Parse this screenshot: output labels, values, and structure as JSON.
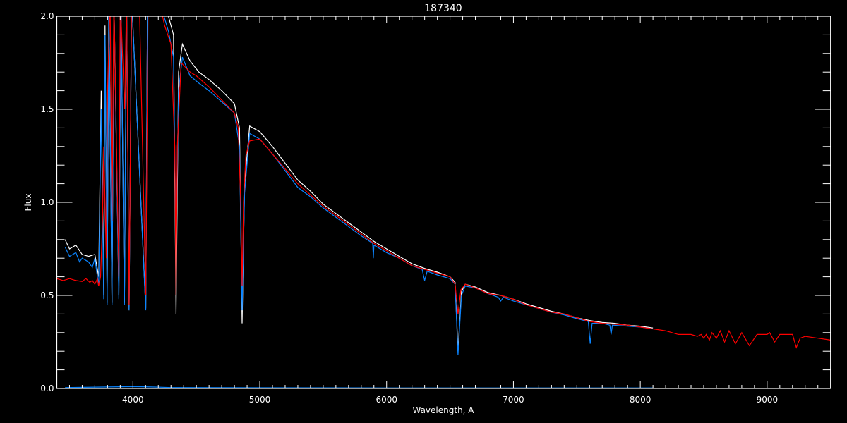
{
  "chart_data": {
    "type": "line",
    "title": "187340",
    "xlabel": "Wavelength, A",
    "ylabel": "Flux",
    "xlim": [
      3400,
      9500
    ],
    "ylim": [
      0,
      2.0
    ],
    "xticks": [
      4000,
      5000,
      6000,
      7000,
      8000,
      9000
    ],
    "xtick_labels": [
      "4000",
      "5000",
      "6000",
      "7000",
      "8000",
      "9000"
    ],
    "yticks": [
      0,
      0.5,
      1.0,
      1.5,
      2.0
    ],
    "ytick_labels": [
      "0.0",
      "0.5",
      "1.0",
      "1.5",
      "2.0"
    ],
    "grid": false,
    "background": "#000000",
    "series": [
      {
        "color": "#ffffff",
        "points": [
          [
            3465,
            0.8
          ],
          [
            3500,
            0.75
          ],
          [
            3550,
            0.77
          ],
          [
            3600,
            0.72
          ],
          [
            3650,
            0.71
          ],
          [
            3700,
            0.72
          ],
          [
            3730,
            0.6
          ],
          [
            3750,
            1.6
          ],
          [
            3770,
            0.5
          ],
          [
            3780,
            1.95
          ],
          [
            3797,
            0.46
          ],
          [
            3810,
            2.1
          ],
          [
            3835,
            0.46
          ],
          [
            3850,
            2.1
          ],
          [
            3889,
            0.5
          ],
          [
            3905,
            2.1
          ],
          [
            3933,
            0.46
          ],
          [
            3950,
            2.1
          ],
          [
            3970,
            0.42
          ],
          [
            3990,
            2.1
          ],
          [
            4101,
            0.43
          ],
          [
            4115,
            2.1
          ],
          [
            4200,
            2.1
          ],
          [
            4280,
            2.0
          ],
          [
            4320,
            1.9
          ],
          [
            4340,
            0.4
          ],
          [
            4360,
            1.7
          ],
          [
            4390,
            1.85
          ],
          [
            4450,
            1.76
          ],
          [
            4520,
            1.7
          ],
          [
            4600,
            1.66
          ],
          [
            4700,
            1.6
          ],
          [
            4800,
            1.53
          ],
          [
            4840,
            1.4
          ],
          [
            4861,
            0.35
          ],
          [
            4880,
            1.1
          ],
          [
            4920,
            1.41
          ],
          [
            5000,
            1.38
          ],
          [
            5100,
            1.3
          ],
          [
            5200,
            1.21
          ],
          [
            5300,
            1.12
          ],
          [
            5400,
            1.06
          ],
          [
            5500,
            0.99
          ],
          [
            5600,
            0.94
          ],
          [
            5700,
            0.89
          ],
          [
            5800,
            0.84
          ],
          [
            5900,
            0.79
          ],
          [
            6000,
            0.75
          ],
          [
            6100,
            0.71
          ],
          [
            6200,
            0.67
          ],
          [
            6300,
            0.645
          ],
          [
            6400,
            0.625
          ],
          [
            6500,
            0.6
          ],
          [
            6540,
            0.57
          ],
          [
            6563,
            0.2
          ],
          [
            6590,
            0.52
          ],
          [
            6620,
            0.56
          ],
          [
            6700,
            0.545
          ],
          [
            6800,
            0.515
          ],
          [
            6900,
            0.5
          ],
          [
            7000,
            0.48
          ],
          [
            7100,
            0.455
          ],
          [
            7200,
            0.435
          ],
          [
            7300,
            0.415
          ],
          [
            7400,
            0.4
          ],
          [
            7500,
            0.38
          ],
          [
            7600,
            0.365
          ],
          [
            7700,
            0.355
          ],
          [
            7800,
            0.35
          ],
          [
            7900,
            0.34
          ],
          [
            8000,
            0.335
          ],
          [
            8100,
            0.325
          ]
        ]
      },
      {
        "color": "#0a84ff",
        "points": [
          [
            3465,
            0.76
          ],
          [
            3500,
            0.71
          ],
          [
            3550,
            0.73
          ],
          [
            3580,
            0.68
          ],
          [
            3600,
            0.7
          ],
          [
            3650,
            0.68
          ],
          [
            3680,
            0.65
          ],
          [
            3700,
            0.7
          ],
          [
            3730,
            0.55
          ],
          [
            3750,
            1.5
          ],
          [
            3770,
            0.48
          ],
          [
            3780,
            1.9
          ],
          [
            3797,
            0.45
          ],
          [
            3810,
            2.1
          ],
          [
            3835,
            0.45
          ],
          [
            3850,
            2.1
          ],
          [
            3889,
            0.48
          ],
          [
            3905,
            2.1
          ],
          [
            3933,
            0.45
          ],
          [
            3950,
            2.1
          ],
          [
            3970,
            0.42
          ],
          [
            3990,
            2.1
          ],
          [
            4101,
            0.42
          ],
          [
            4115,
            2.1
          ],
          [
            4200,
            2.1
          ],
          [
            4280,
            1.92
          ],
          [
            4320,
            1.78
          ],
          [
            4340,
            0.74
          ],
          [
            4360,
            1.6
          ],
          [
            4390,
            1.78
          ],
          [
            4450,
            1.68
          ],
          [
            4520,
            1.64
          ],
          [
            4600,
            1.6
          ],
          [
            4700,
            1.54
          ],
          [
            4800,
            1.48
          ],
          [
            4840,
            1.3
          ],
          [
            4861,
            0.42
          ],
          [
            4880,
            1.05
          ],
          [
            4920,
            1.37
          ],
          [
            5000,
            1.34
          ],
          [
            5100,
            1.26
          ],
          [
            5200,
            1.17
          ],
          [
            5300,
            1.08
          ],
          [
            5400,
            1.03
          ],
          [
            5500,
            0.97
          ],
          [
            5600,
            0.92
          ],
          [
            5700,
            0.87
          ],
          [
            5800,
            0.82
          ],
          [
            5890,
            0.78
          ],
          [
            5895,
            0.7
          ],
          [
            5900,
            0.77
          ],
          [
            6000,
            0.73
          ],
          [
            6100,
            0.7
          ],
          [
            6200,
            0.66
          ],
          [
            6280,
            0.64
          ],
          [
            6300,
            0.58
          ],
          [
            6320,
            0.63
          ],
          [
            6400,
            0.61
          ],
          [
            6500,
            0.59
          ],
          [
            6540,
            0.56
          ],
          [
            6563,
            0.18
          ],
          [
            6590,
            0.5
          ],
          [
            6620,
            0.55
          ],
          [
            6700,
            0.54
          ],
          [
            6800,
            0.51
          ],
          [
            6880,
            0.49
          ],
          [
            6900,
            0.47
          ],
          [
            6920,
            0.49
          ],
          [
            7000,
            0.47
          ],
          [
            7100,
            0.45
          ],
          [
            7200,
            0.43
          ],
          [
            7300,
            0.41
          ],
          [
            7400,
            0.395
          ],
          [
            7500,
            0.375
          ],
          [
            7590,
            0.36
          ],
          [
            7605,
            0.24
          ],
          [
            7620,
            0.35
          ],
          [
            7700,
            0.35
          ],
          [
            7760,
            0.34
          ],
          [
            7770,
            0.29
          ],
          [
            7780,
            0.34
          ],
          [
            7900,
            0.335
          ],
          [
            8000,
            0.33
          ],
          [
            8100,
            0.32
          ]
        ]
      },
      {
        "color": "#0a84ff",
        "points": [
          [
            3465,
            0.005
          ],
          [
            3800,
            0.008
          ],
          [
            4000,
            0.01
          ],
          [
            4150,
            0.008
          ],
          [
            4300,
            0.005
          ],
          [
            6000,
            0.003
          ],
          [
            8100,
            0.003
          ]
        ]
      },
      {
        "color": "#ff0000",
        "points": [
          [
            3400,
            0.59
          ],
          [
            3450,
            0.58
          ],
          [
            3500,
            0.59
          ],
          [
            3550,
            0.58
          ],
          [
            3600,
            0.575
          ],
          [
            3630,
            0.59
          ],
          [
            3660,
            0.57
          ],
          [
            3680,
            0.58
          ],
          [
            3700,
            0.56
          ],
          [
            3720,
            0.59
          ],
          [
            3730,
            0.55
          ],
          [
            3745,
            0.6
          ],
          [
            3760,
            0.9
          ],
          [
            3770,
            1.3
          ],
          [
            3790,
            0.7
          ],
          [
            3800,
            1.6
          ],
          [
            3820,
            2.1
          ],
          [
            3835,
            0.9
          ],
          [
            3850,
            2.1
          ],
          [
            3889,
            0.6
          ],
          [
            3900,
            2.1
          ],
          [
            3935,
            1.5
          ],
          [
            3950,
            2.1
          ],
          [
            3970,
            0.45
          ],
          [
            3990,
            2.1
          ],
          [
            4050,
            2.1
          ],
          [
            4101,
            0.5
          ],
          [
            4120,
            2.1
          ],
          [
            4200,
            2.1
          ],
          [
            4250,
            1.95
          ],
          [
            4300,
            1.85
          ],
          [
            4330,
            1.3
          ],
          [
            4340,
            0.5
          ],
          [
            4350,
            1.3
          ],
          [
            4380,
            1.75
          ],
          [
            4450,
            1.7
          ],
          [
            4500,
            1.68
          ],
          [
            4600,
            1.62
          ],
          [
            4700,
            1.55
          ],
          [
            4800,
            1.48
          ],
          [
            4830,
            1.4
          ],
          [
            4850,
            1.0
          ],
          [
            4861,
            0.55
          ],
          [
            4872,
            1.0
          ],
          [
            4890,
            1.25
          ],
          [
            4920,
            1.33
          ],
          [
            5000,
            1.34
          ],
          [
            5100,
            1.26
          ],
          [
            5200,
            1.18
          ],
          [
            5300,
            1.1
          ],
          [
            5400,
            1.04
          ],
          [
            5500,
            0.98
          ],
          [
            5600,
            0.93
          ],
          [
            5700,
            0.88
          ],
          [
            5800,
            0.83
          ],
          [
            5900,
            0.78
          ],
          [
            6000,
            0.74
          ],
          [
            6100,
            0.7
          ],
          [
            6200,
            0.66
          ],
          [
            6300,
            0.64
          ],
          [
            6400,
            0.62
          ],
          [
            6500,
            0.6
          ],
          [
            6540,
            0.56
          ],
          [
            6563,
            0.4
          ],
          [
            6585,
            0.53
          ],
          [
            6620,
            0.56
          ],
          [
            6700,
            0.54
          ],
          [
            6800,
            0.51
          ],
          [
            6900,
            0.5
          ],
          [
            7000,
            0.48
          ],
          [
            7100,
            0.45
          ],
          [
            7200,
            0.43
          ],
          [
            7300,
            0.41
          ],
          [
            7400,
            0.4
          ],
          [
            7500,
            0.38
          ],
          [
            7600,
            0.36
          ],
          [
            7700,
            0.35
          ],
          [
            7800,
            0.345
          ],
          [
            7900,
            0.34
          ],
          [
            8000,
            0.33
          ],
          [
            8100,
            0.32
          ],
          [
            8200,
            0.31
          ],
          [
            8300,
            0.29
          ],
          [
            8400,
            0.29
          ],
          [
            8450,
            0.28
          ],
          [
            8480,
            0.29
          ],
          [
            8500,
            0.27
          ],
          [
            8520,
            0.29
          ],
          [
            8545,
            0.26
          ],
          [
            8565,
            0.3
          ],
          [
            8600,
            0.27
          ],
          [
            8630,
            0.31
          ],
          [
            8665,
            0.25
          ],
          [
            8700,
            0.31
          ],
          [
            8750,
            0.24
          ],
          [
            8800,
            0.3
          ],
          [
            8860,
            0.23
          ],
          [
            8920,
            0.29
          ],
          [
            9000,
            0.29
          ],
          [
            9020,
            0.3
          ],
          [
            9060,
            0.25
          ],
          [
            9100,
            0.29
          ],
          [
            9200,
            0.29
          ],
          [
            9230,
            0.22
          ],
          [
            9260,
            0.27
          ],
          [
            9300,
            0.28
          ],
          [
            9400,
            0.27
          ],
          [
            9500,
            0.26
          ]
        ]
      }
    ]
  }
}
